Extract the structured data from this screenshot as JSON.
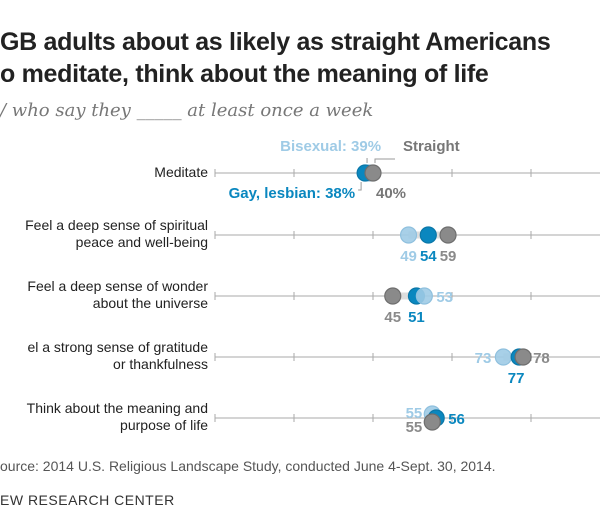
{
  "title_lines": [
    "GB adults about as likely as straight Americans",
    "o meditate, think about the meaning of life"
  ],
  "subtitle": "/ who say they _____ at least once a week",
  "source": "ource: 2014 U.S. Religious Landscape Study, conducted June 4-Sept. 30, 2014.",
  "org": "EW RESEARCH CENTER",
  "chart_data": {
    "type": "dot",
    "xlim": [
      0,
      100
    ],
    "series": [
      {
        "name": "Bisexual",
        "color": "#9fcbe6"
      },
      {
        "name": "Gay, lesbian",
        "color": "#0a87bf"
      },
      {
        "name": "Straight",
        "color": "#8a8a8a"
      }
    ],
    "legend": {
      "bisexual": "Bisexual: 39%",
      "gay": "Gay, lesbian: 38%",
      "straight": "Straight",
      "straight_value": "40%"
    },
    "rows": [
      {
        "label": [
          "Meditate"
        ],
        "bisexual": 39,
        "gay": 38,
        "straight": 40
      },
      {
        "label": [
          "Feel a deep sense of spiritual",
          "peace and well-being"
        ],
        "bisexual": 49,
        "gay": 54,
        "straight": 59
      },
      {
        "label": [
          "Feel a deep sense of wonder",
          "about the universe"
        ],
        "bisexual": 53,
        "gay": 51,
        "straight": 45
      },
      {
        "label": [
          "el a strong sense of gratitude",
          "or thankfulness"
        ],
        "bisexual": 73,
        "gay": 77,
        "straight": 78
      },
      {
        "label": [
          "Think about the meaning and",
          "purpose of life"
        ],
        "bisexual": 55,
        "gay": 56,
        "straight": 55
      }
    ]
  }
}
